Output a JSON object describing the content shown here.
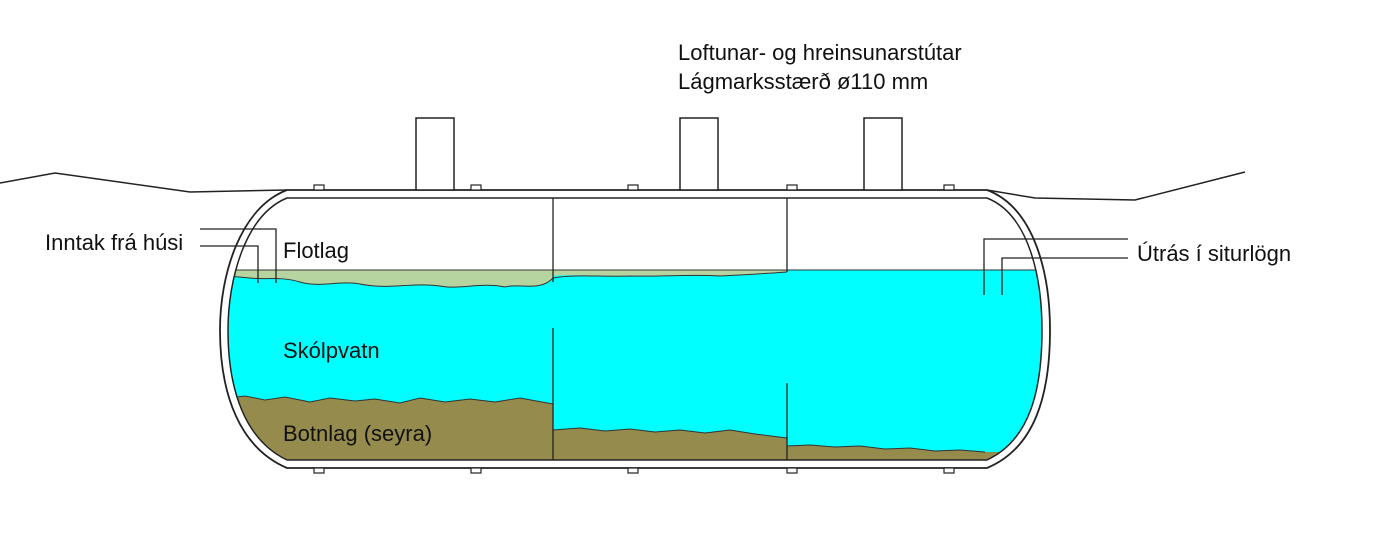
{
  "diagram": {
    "vent_label_line1": "Loftunar- og hreinsunarstútar",
    "vent_label_line2": "Lágmarksstærð ø110 mm",
    "inlet_label": "Inntak frá húsi",
    "outlet_label": "Útrás í siturlögn",
    "layers": {
      "scum": "Flotlag",
      "wastewater": "Skólpvatn",
      "sludge": "Botnlag (seyra)"
    },
    "colors": {
      "water": "#00FFFF",
      "scum": "#B5D4A0",
      "sludge": "#948B4D",
      "outline": "#222222",
      "background": "#FFFFFF"
    }
  }
}
